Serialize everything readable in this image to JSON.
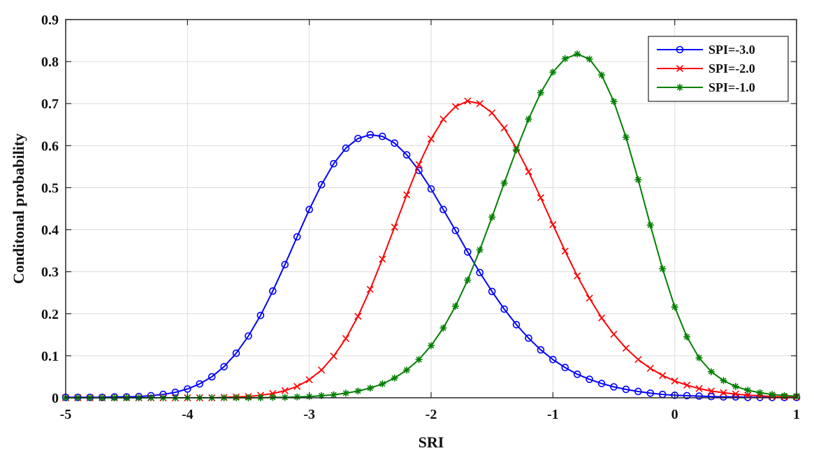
{
  "chart_data": {
    "type": "line",
    "xlabel": "SRI",
    "ylabel": "Conditonal probability",
    "xlim": [
      -5,
      1
    ],
    "ylim": [
      0,
      0.9
    ],
    "xticks": [
      "-5",
      "-4",
      "-3",
      "-2",
      "-1",
      "0",
      "1"
    ],
    "yticks": [
      "0",
      "0.1",
      "0.2",
      "0.3",
      "0.4",
      "0.5",
      "0.6",
      "0.7",
      "0.8",
      "0.9"
    ],
    "grid": true,
    "legend_position": "top-right",
    "x": [
      -5.0,
      -4.9,
      -4.8,
      -4.7,
      -4.6,
      -4.5,
      -4.4,
      -4.3,
      -4.2,
      -4.1,
      -4.0,
      -3.9,
      -3.8,
      -3.7,
      -3.6,
      -3.5,
      -3.4,
      -3.3,
      -3.2,
      -3.1,
      -3.0,
      -2.9,
      -2.8,
      -2.7,
      -2.6,
      -2.5,
      -2.4,
      -2.3,
      -2.2,
      -2.1,
      -2.0,
      -1.9,
      -1.8,
      -1.7,
      -1.6,
      -1.5,
      -1.4,
      -1.3,
      -1.2,
      -1.1,
      -1.0,
      -0.9,
      -0.8,
      -0.7,
      -0.6,
      -0.5,
      -0.4,
      -0.3,
      -0.2,
      -0.1,
      0.0,
      0.1,
      0.2,
      0.3,
      0.4,
      0.5,
      0.6,
      0.7,
      0.8,
      0.9,
      1.0
    ],
    "series": [
      {
        "name": "SPI=-3.0",
        "color": "#0000ff",
        "marker": "circle",
        "values": [
          0.001,
          0.001,
          0.001,
          0.001,
          0.002,
          0.002,
          0.003,
          0.005,
          0.008,
          0.013,
          0.021,
          0.033,
          0.05,
          0.074,
          0.106,
          0.147,
          0.196,
          0.254,
          0.317,
          0.383,
          0.448,
          0.507,
          0.557,
          0.594,
          0.617,
          0.626,
          0.622,
          0.606,
          0.578,
          0.541,
          0.497,
          0.448,
          0.398,
          0.347,
          0.298,
          0.253,
          0.211,
          0.174,
          0.142,
          0.114,
          0.091,
          0.072,
          0.056,
          0.044,
          0.034,
          0.026,
          0.02,
          0.015,
          0.011,
          0.008,
          0.006,
          0.005,
          0.004,
          0.003,
          0.002,
          0.002,
          0.001,
          0.001,
          0.001,
          0.001,
          0.001
        ]
      },
      {
        "name": "SPI=-2.0",
        "color": "#ff0000",
        "marker": "x",
        "values": [
          0.0,
          0.0,
          0.0,
          0.0,
          0.0,
          0.0,
          0.0,
          0.0,
          0.0,
          0.0,
          0.0,
          0.0,
          0.0,
          0.001,
          0.002,
          0.003,
          0.006,
          0.01,
          0.017,
          0.027,
          0.043,
          0.066,
          0.099,
          0.141,
          0.194,
          0.258,
          0.33,
          0.406,
          0.483,
          0.555,
          0.616,
          0.663,
          0.693,
          0.706,
          0.7,
          0.678,
          0.642,
          0.594,
          0.538,
          0.476,
          0.412,
          0.349,
          0.29,
          0.237,
          0.19,
          0.151,
          0.118,
          0.091,
          0.07,
          0.053,
          0.04,
          0.03,
          0.022,
          0.016,
          0.012,
          0.009,
          0.006,
          0.005,
          0.003,
          0.002,
          0.002
        ]
      },
      {
        "name": "SPI=-1.0",
        "color": "#008000",
        "marker": "star",
        "values": [
          0.0,
          0.0,
          0.0,
          0.0,
          0.0,
          0.0,
          0.0,
          0.0,
          0.0,
          0.0,
          0.0,
          0.0,
          0.0,
          0.0,
          0.0,
          0.0,
          0.0,
          0.001,
          0.001,
          0.002,
          0.003,
          0.005,
          0.007,
          0.011,
          0.016,
          0.023,
          0.033,
          0.047,
          0.066,
          0.091,
          0.124,
          0.166,
          0.218,
          0.28,
          0.352,
          0.43,
          0.511,
          0.59,
          0.663,
          0.726,
          0.775,
          0.807,
          0.818,
          0.806,
          0.768,
          0.705,
          0.62,
          0.519,
          0.411,
          0.307,
          0.216,
          0.145,
          0.095,
          0.062,
          0.041,
          0.027,
          0.018,
          0.012,
          0.008,
          0.005,
          0.004
        ]
      }
    ]
  }
}
